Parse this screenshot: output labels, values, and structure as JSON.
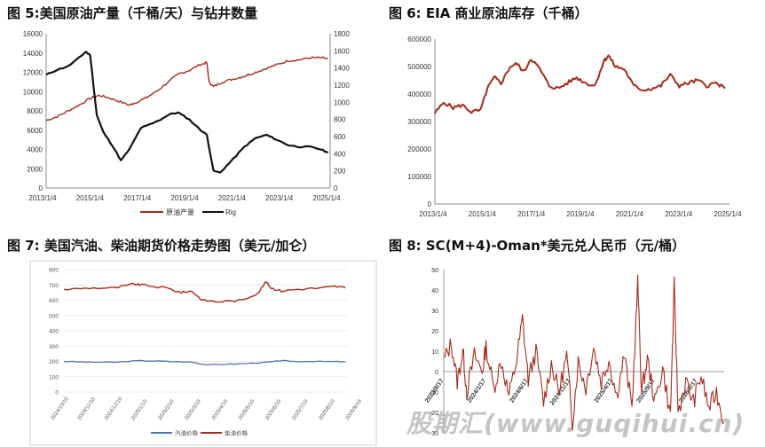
{
  "panels": [
    {
      "title": "图 5:美国原油产量（千桶/天）与钻井数量"
    },
    {
      "title": "图 6: EIA 商业原油库存（千桶）"
    },
    {
      "title": "图 7: 美国汽油、柴油期货价格走势图（美元/加仑）"
    },
    {
      "title": "图 8: SC(M+4)-Oman*美元兑人民币（元/桶）"
    }
  ],
  "watermark": "股期汇(www.guqihui.cn)",
  "colors": {
    "red": "#a52a1a",
    "black": "#111111",
    "blue": "#4a74b0"
  },
  "chart_data": [
    {
      "type": "line",
      "x_ticks": [
        "2013/1/4",
        "2015/1/4",
        "2017/1/4",
        "2019/1/4",
        "2021/1/4",
        "2023/1/4",
        "2025/1/4"
      ],
      "y_ticks": [
        "0",
        "2000",
        "4000",
        "6000",
        "8000",
        "10000",
        "12000",
        "14000",
        "16000"
      ],
      "y2_ticks": [
        "0",
        "200",
        "400",
        "600",
        "800",
        "1000",
        "1200",
        "1400",
        "1600",
        "1800"
      ],
      "ylim": [
        0,
        16000
      ],
      "y2lim": [
        0,
        1800
      ],
      "xlim": [
        2013.0,
        2025.9
      ],
      "legend": [
        "原油产量",
        "Rig"
      ],
      "series": [
        {
          "name": "原油产量",
          "axis": "left",
          "color": "#a52a1a",
          "points": [
            [
              2013.0,
              7000
            ],
            [
              2013.5,
              7400
            ],
            [
              2014.0,
              8000
            ],
            [
              2014.5,
              8600
            ],
            [
              2015.0,
              9300
            ],
            [
              2015.4,
              9600
            ],
            [
              2015.8,
              9400
            ],
            [
              2016.3,
              9000
            ],
            [
              2016.8,
              8600
            ],
            [
              2017.0,
              8800
            ],
            [
              2017.5,
              9300
            ],
            [
              2018.0,
              10000
            ],
            [
              2018.5,
              10900
            ],
            [
              2019.0,
              11800
            ],
            [
              2019.5,
              12200
            ],
            [
              2020.0,
              12800
            ],
            [
              2020.3,
              13000
            ],
            [
              2020.4,
              11000
            ],
            [
              2020.6,
              10500
            ],
            [
              2021.0,
              11000
            ],
            [
              2021.5,
              11300
            ],
            [
              2022.0,
              11600
            ],
            [
              2022.5,
              12000
            ],
            [
              2023.0,
              12400
            ],
            [
              2023.5,
              12800
            ],
            [
              2024.0,
              13200
            ],
            [
              2024.5,
              13300
            ],
            [
              2025.0,
              13500
            ],
            [
              2025.5,
              13500
            ],
            [
              2025.8,
              13400
            ]
          ]
        },
        {
          "name": "Rig",
          "axis": "right",
          "color": "#111111",
          "points": [
            [
              2013.0,
              1320
            ],
            [
              2013.5,
              1380
            ],
            [
              2014.0,
              1420
            ],
            [
              2014.5,
              1520
            ],
            [
              2014.8,
              1590
            ],
            [
              2015.0,
              1550
            ],
            [
              2015.3,
              850
            ],
            [
              2015.6,
              650
            ],
            [
              2016.0,
              500
            ],
            [
              2016.4,
              320
            ],
            [
              2016.8,
              460
            ],
            [
              2017.3,
              700
            ],
            [
              2017.8,
              750
            ],
            [
              2018.2,
              800
            ],
            [
              2018.6,
              860
            ],
            [
              2019.0,
              880
            ],
            [
              2019.5,
              800
            ],
            [
              2020.0,
              680
            ],
            [
              2020.3,
              620
            ],
            [
              2020.6,
              200
            ],
            [
              2020.9,
              180
            ],
            [
              2021.5,
              340
            ],
            [
              2022.0,
              480
            ],
            [
              2022.5,
              580
            ],
            [
              2023.0,
              620
            ],
            [
              2023.5,
              560
            ],
            [
              2024.0,
              500
            ],
            [
              2024.5,
              480
            ],
            [
              2025.0,
              480
            ],
            [
              2025.5,
              450
            ],
            [
              2025.8,
              410
            ]
          ]
        }
      ]
    },
    {
      "type": "line",
      "x_ticks": [
        "2013/1/4",
        "2015/1/4",
        "2017/1/4",
        "2019/1/4",
        "2021/1/4",
        "2023/1/4",
        "2025/1/4"
      ],
      "y_ticks": [
        "0",
        "100000",
        "200000",
        "300000",
        "400000",
        "500000",
        "600000"
      ],
      "ylim": [
        0,
        600000
      ],
      "xlim": [
        2013.0,
        2025.9
      ],
      "series": [
        {
          "name": "",
          "color": "#a52a1a",
          "points": [
            [
              2013.0,
              330000
            ],
            [
              2013.4,
              370000
            ],
            [
              2013.8,
              350000
            ],
            [
              2014.2,
              360000
            ],
            [
              2014.6,
              335000
            ],
            [
              2015.0,
              340000
            ],
            [
              2015.3,
              420000
            ],
            [
              2015.6,
              460000
            ],
            [
              2015.9,
              440000
            ],
            [
              2016.3,
              500000
            ],
            [
              2016.6,
              510000
            ],
            [
              2016.9,
              480000
            ],
            [
              2017.2,
              530000
            ],
            [
              2017.6,
              490000
            ],
            [
              2018.0,
              430000
            ],
            [
              2018.4,
              420000
            ],
            [
              2018.8,
              440000
            ],
            [
              2019.2,
              460000
            ],
            [
              2019.6,
              440000
            ],
            [
              2020.0,
              430000
            ],
            [
              2020.4,
              520000
            ],
            [
              2020.6,
              540000
            ],
            [
              2020.9,
              500000
            ],
            [
              2021.3,
              490000
            ],
            [
              2021.7,
              430000
            ],
            [
              2022.1,
              415000
            ],
            [
              2022.5,
              420000
            ],
            [
              2022.9,
              430000
            ],
            [
              2023.3,
              470000
            ],
            [
              2023.7,
              430000
            ],
            [
              2024.1,
              440000
            ],
            [
              2024.5,
              450000
            ],
            [
              2024.9,
              430000
            ],
            [
              2025.3,
              440000
            ],
            [
              2025.7,
              420000
            ]
          ]
        }
      ]
    },
    {
      "type": "line",
      "x_ticks": [
        "2024/10/10",
        "2024/11/10",
        "2024/12/10",
        "2025/1/10",
        "2025/2/10",
        "2025/3/10",
        "2025/4/10",
        "2025/5/10",
        "2025/6/10",
        "2025/7/10",
        "2025/8/10",
        "2025/9/10"
      ],
      "y_ticks": [
        "0",
        "100",
        "200",
        "300",
        "400",
        "500",
        "600",
        "700",
        "800"
      ],
      "ylim": [
        0,
        800
      ],
      "xlim": [
        0,
        11.1
      ],
      "legend": [
        "汽油价格",
        "柴油价格"
      ],
      "series": [
        {
          "name": "汽油价格",
          "color": "#4a74b0",
          "points": [
            [
              0,
              200
            ],
            [
              1,
              195
            ],
            [
              2,
              195
            ],
            [
              3,
              205
            ],
            [
              4,
              200
            ],
            [
              5,
              195
            ],
            [
              5.5,
              180
            ],
            [
              6,
              180
            ],
            [
              7,
              185
            ],
            [
              8,
              195
            ],
            [
              8.5,
              205
            ],
            [
              9,
              200
            ],
            [
              10,
              200
            ],
            [
              11,
              198
            ]
          ]
        },
        {
          "name": "柴油价格",
          "color": "#a52a1a",
          "points": [
            [
              0,
              670
            ],
            [
              1,
              680
            ],
            [
              2,
              680
            ],
            [
              2.7,
              705
            ],
            [
              3,
              700
            ],
            [
              4,
              680
            ],
            [
              4.6,
              650
            ],
            [
              5.0,
              660
            ],
            [
              5.4,
              600
            ],
            [
              6,
              590
            ],
            [
              7,
              600
            ],
            [
              7.6,
              650
            ],
            [
              7.9,
              720
            ],
            [
              8.1,
              680
            ],
            [
              8.5,
              660
            ],
            [
              9,
              670
            ],
            [
              10,
              680
            ],
            [
              10.6,
              690
            ],
            [
              11,
              680
            ]
          ]
        }
      ]
    },
    {
      "type": "line",
      "x_ticks": [
        "2023/8/17",
        "2024/1/17",
        "2024/6/17",
        "2024/11/17",
        "2025/4/17",
        "2025/9/17",
        "2026/2/17"
      ],
      "y_ticks": [
        "-30",
        "-20",
        "-10",
        "0",
        "10",
        "20",
        "30",
        "40",
        "50"
      ],
      "ylim": [
        -30,
        50
      ],
      "xlim": [
        0,
        7.3
      ],
      "series": [
        {
          "name": "",
          "color": "#a52a1a",
          "points": [
            [
              0.0,
              5
            ],
            [
              0.2,
              14
            ],
            [
              0.35,
              -5
            ],
            [
              0.5,
              10
            ],
            [
              0.6,
              -10
            ],
            [
              0.8,
              8
            ],
            [
              1.0,
              0
            ],
            [
              1.1,
              12
            ],
            [
              1.3,
              -8
            ],
            [
              1.5,
              5
            ],
            [
              1.7,
              -12
            ],
            [
              1.9,
              6
            ],
            [
              2.05,
              26
            ],
            [
              2.2,
              -4
            ],
            [
              2.4,
              10
            ],
            [
              2.6,
              -15
            ],
            [
              2.8,
              4
            ],
            [
              3.0,
              -10
            ],
            [
              3.2,
              8
            ],
            [
              3.35,
              -25
            ],
            [
              3.5,
              5
            ],
            [
              3.7,
              -8
            ],
            [
              3.9,
              12
            ],
            [
              4.1,
              -5
            ],
            [
              4.3,
              6
            ],
            [
              4.5,
              -12
            ],
            [
              4.7,
              8
            ],
            [
              4.9,
              -18
            ],
            [
              5.05,
              44
            ],
            [
              5.15,
              -10
            ],
            [
              5.3,
              6
            ],
            [
              5.5,
              -15
            ],
            [
              5.7,
              2
            ],
            [
              5.9,
              -22
            ],
            [
              6.0,
              42
            ],
            [
              6.1,
              -20
            ],
            [
              6.3,
              -5
            ],
            [
              6.5,
              -15
            ],
            [
              6.7,
              -2
            ],
            [
              6.9,
              -18
            ],
            [
              7.1,
              -10
            ],
            [
              7.3,
              -25
            ]
          ]
        }
      ]
    }
  ]
}
